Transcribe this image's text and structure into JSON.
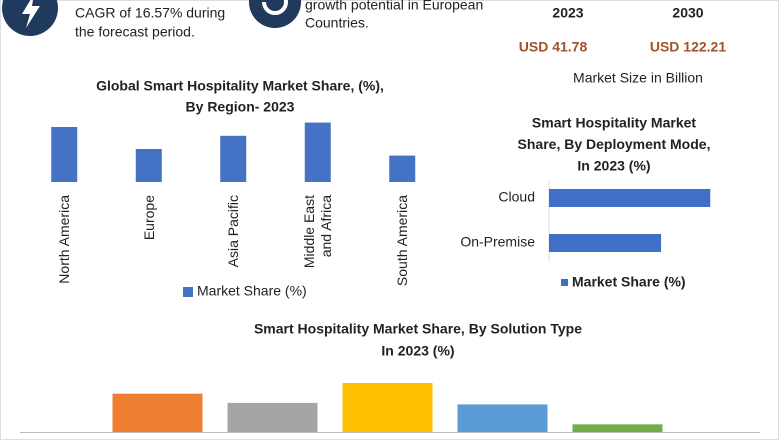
{
  "infographic": {
    "cagr_text": [
      "CAGR of 16.57% during",
      "the forecast period."
    ],
    "growth_text": [
      "growth potential in European",
      "Countries."
    ],
    "years": [
      "2023",
      "2030"
    ],
    "market_sizes": [
      "USD 41.78",
      "USD 122.21"
    ],
    "market_size_caption": "Market Size in Billion"
  },
  "chart_data": [
    {
      "type": "bar",
      "title": [
        "Global Smart Hospitality Market Share, (%),",
        "By Region- 2023"
      ],
      "categories": [
        "North America",
        "Europe",
        "Asia Pacific",
        "Middle East and Africa",
        "South America"
      ],
      "series": [
        {
          "name": "Market Share (%)",
          "color": "#4472c4",
          "values": [
            25,
            15,
            21,
            27,
            12
          ]
        }
      ],
      "ylim": [
        0,
        30
      ],
      "legend": "bottom"
    },
    {
      "type": "hbar",
      "title": [
        "Smart Hospitality Market",
        "Share, By Deployment Mode,",
        "In 2023 (%)"
      ],
      "categories": [
        "Cloud",
        "On-Premise"
      ],
      "series": [
        {
          "name": "Market Share (%)",
          "color": "#3f6fc6",
          "values": [
            59,
            41
          ]
        }
      ],
      "xlim": [
        0,
        60
      ],
      "legend": "bottom"
    },
    {
      "type": "bar",
      "title": [
        "Smart Hospitality Market  Share, By Solution Type",
        "In 2023 (%)"
      ],
      "categories": [
        null,
        null,
        null,
        null,
        null
      ],
      "values": [
        25,
        19,
        32,
        18,
        5
      ],
      "colors": [
        "#ed7d31",
        "#a5a5a5",
        "#ffc000",
        "#5b9bd5",
        "#70ad47"
      ],
      "ylim": [
        0,
        75
      ]
    }
  ]
}
